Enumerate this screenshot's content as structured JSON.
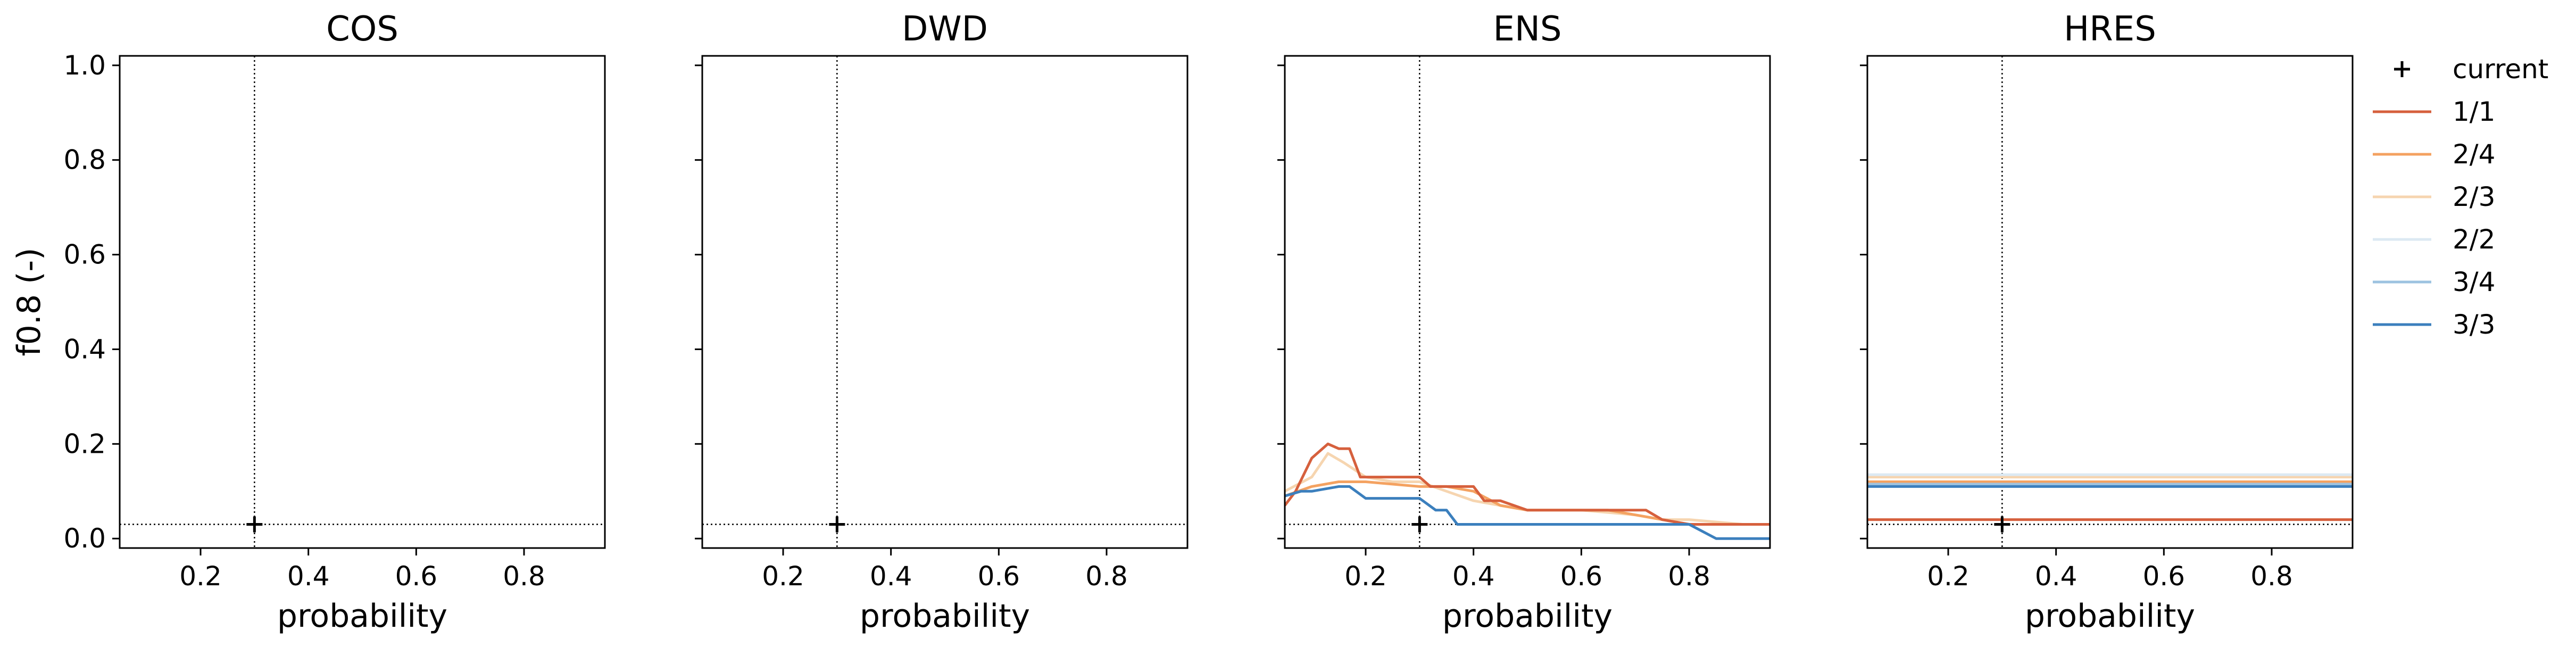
{
  "chart_data": {
    "type": "line",
    "ylabel": "f0.8 (-)",
    "xlabel": "probability",
    "xlim": [
      0.05,
      0.95
    ],
    "ylim": [
      -0.02,
      1.02
    ],
    "xticks": [
      "0.2",
      "0.4",
      "0.6",
      "0.8"
    ],
    "xtick_values": [
      0.2,
      0.4,
      0.6,
      0.8
    ],
    "yticks": [
      "0.0",
      "0.2",
      "0.4",
      "0.6",
      "0.8",
      "1.0"
    ],
    "ytick_values": [
      0.0,
      0.2,
      0.4,
      0.6,
      0.8,
      1.0
    ],
    "grid": false,
    "legend_position": "outside-right",
    "current_point": {
      "label": "current",
      "x": 0.3,
      "y": 0.03
    },
    "legend": [
      {
        "label": "current",
        "marker": "+",
        "color": "#000000"
      },
      {
        "label": "1/1",
        "color": "#d6603d"
      },
      {
        "label": "2/4",
        "color": "#f4a261"
      },
      {
        "label": "2/3",
        "color": "#f6d5b0"
      },
      {
        "label": "2/2",
        "color": "#dce9f3"
      },
      {
        "label": "3/4",
        "color": "#9dc3e0"
      },
      {
        "label": "3/3",
        "color": "#3b7fbd"
      }
    ],
    "panels": [
      {
        "title": "COS",
        "series": []
      },
      {
        "title": "DWD",
        "series": []
      },
      {
        "title": "ENS",
        "series": [
          {
            "name": "2/3",
            "color": "#f6d5b0",
            "x": [
              0.05,
              0.1,
              0.13,
              0.16,
              0.2,
              0.25,
              0.3,
              0.35,
              0.4,
              0.45,
              0.5,
              0.6,
              0.7,
              0.75,
              0.8,
              0.9,
              0.95
            ],
            "y": [
              0.1,
              0.13,
              0.18,
              0.16,
              0.13,
              0.12,
              0.12,
              0.1,
              0.08,
              0.07,
              0.06,
              0.06,
              0.05,
              0.04,
              0.04,
              0.03,
              0.03
            ]
          },
          {
            "name": "2/4",
            "color": "#f4a261",
            "x": [
              0.05,
              0.1,
              0.15,
              0.2,
              0.3,
              0.35,
              0.4,
              0.45,
              0.5,
              0.6,
              0.65,
              0.7,
              0.8,
              0.9,
              0.95
            ],
            "y": [
              0.09,
              0.11,
              0.12,
              0.12,
              0.11,
              0.11,
              0.1,
              0.07,
              0.06,
              0.06,
              0.06,
              0.05,
              0.03,
              0.03,
              0.03
            ]
          },
          {
            "name": "1/1",
            "color": "#d6603d",
            "x": [
              0.05,
              0.07,
              0.1,
              0.13,
              0.15,
              0.17,
              0.19,
              0.21,
              0.25,
              0.3,
              0.32,
              0.35,
              0.38,
              0.4,
              0.42,
              0.45,
              0.5,
              0.6,
              0.68,
              0.7,
              0.72,
              0.75,
              0.8,
              0.88,
              0.9,
              0.95
            ],
            "y": [
              0.07,
              0.1,
              0.17,
              0.2,
              0.19,
              0.19,
              0.13,
              0.13,
              0.13,
              0.13,
              0.11,
              0.11,
              0.11,
              0.11,
              0.08,
              0.08,
              0.06,
              0.06,
              0.06,
              0.06,
              0.06,
              0.04,
              0.03,
              0.03,
              0.03,
              0.03
            ]
          },
          {
            "name": "3/3",
            "color": "#3b7fbd",
            "x": [
              0.05,
              0.08,
              0.1,
              0.15,
              0.17,
              0.2,
              0.25,
              0.3,
              0.33,
              0.35,
              0.37,
              0.4,
              0.45,
              0.5,
              0.6,
              0.7,
              0.8,
              0.85,
              0.9,
              0.95
            ],
            "y": [
              0.09,
              0.1,
              0.1,
              0.11,
              0.11,
              0.085,
              0.085,
              0.085,
              0.06,
              0.06,
              0.03,
              0.03,
              0.03,
              0.03,
              0.03,
              0.03,
              0.03,
              0.0,
              0.0,
              0.0
            ]
          }
        ]
      },
      {
        "title": "HRES",
        "series": [
          {
            "name": "2/3",
            "color": "#f6d5b0",
            "x": [
              0.05,
              0.95
            ],
            "y": [
              0.13,
              0.13
            ]
          },
          {
            "name": "2/4",
            "color": "#f4a261",
            "x": [
              0.05,
              0.95
            ],
            "y": [
              0.12,
              0.12
            ]
          },
          {
            "name": "2/2",
            "color": "#dce9f3",
            "x": [
              0.05,
              0.95
            ],
            "y": [
              0.135,
              0.135
            ]
          },
          {
            "name": "3/4",
            "color": "#9dc3e0",
            "x": [
              0.05,
              0.95
            ],
            "y": [
              0.115,
              0.115
            ]
          },
          {
            "name": "3/3",
            "color": "#3b7fbd",
            "x": [
              0.05,
              0.95
            ],
            "y": [
              0.11,
              0.11
            ]
          },
          {
            "name": "1/1",
            "color": "#d6603d",
            "x": [
              0.05,
              0.95
            ],
            "y": [
              0.04,
              0.04
            ]
          }
        ]
      }
    ]
  }
}
